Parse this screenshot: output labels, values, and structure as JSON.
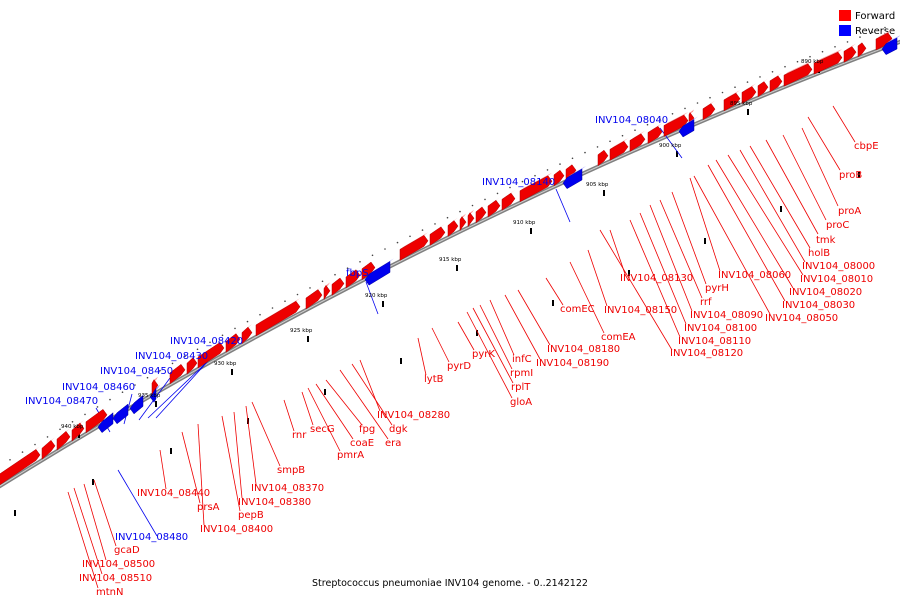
{
  "legend": {
    "forward_label": "Forward",
    "reverse_label": "Reverse",
    "forward_color": "#ff0000",
    "reverse_color": "#0000ff"
  },
  "caption": "Streptococcus pneumoniae INV104 genome. - 0..2142122",
  "colors": {
    "forward": "#ee0000",
    "reverse": "#0000ee",
    "backbone": "#808080"
  },
  "scale_labels": [
    "890 kbp",
    "895 kbp",
    "900 kbp",
    "905 kbp",
    "910 kbp",
    "915 kbp",
    "920 kbp",
    "925 kbp",
    "930 kbp",
    "935 kbp",
    "940 kbp"
  ],
  "genes": {
    "reverse": [
      "INV104_08040",
      "INV104_08140",
      "fbpS",
      "INV104_08420",
      "INV104_08430",
      "INV104_08450",
      "INV104_08460",
      "INV104_08470",
      "INV104_08480"
    ],
    "forward": [
      "cbpE",
      "proB",
      "proA",
      "proC",
      "tmk",
      "holB",
      "INV104_08000",
      "INV104_08010",
      "INV104_08020",
      "INV104_08030",
      "INV104_08050",
      "INV104_08060",
      "pyrH",
      "rrf",
      "INV104_08090",
      "INV104_08100",
      "INV104_08110",
      "INV104_08120",
      "INV104_08130",
      "INV104_08150",
      "comEA",
      "comEC",
      "INV104_08180",
      "INV104_08190",
      "infC",
      "rpmI",
      "rplT",
      "gloA",
      "pyrK",
      "pyrD",
      "lytB",
      "INV104_08280",
      "dgk",
      "era",
      "fpg",
      "coaE",
      "pmrA",
      "secG",
      "rnr",
      "smpB",
      "INV104_08370",
      "INV104_08380",
      "pepB",
      "INV104_08400",
      "prsA",
      "INV104_08440",
      "gcaD",
      "INV104_08500",
      "INV104_08510",
      "mtnN"
    ]
  }
}
